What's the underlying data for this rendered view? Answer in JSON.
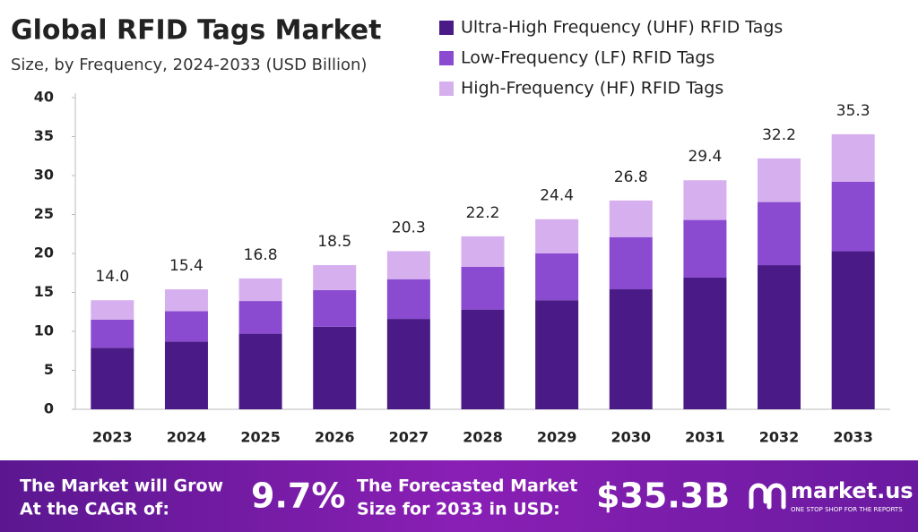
{
  "chart_data": {
    "type": "stacked-bar",
    "title": "Global RFID Tags Market",
    "subtitle": "Size, by Frequency, 2024-2033 (USD Billion)",
    "categories": [
      "2023",
      "2024",
      "2025",
      "2026",
      "2027",
      "2028",
      "2029",
      "2030",
      "2031",
      "2032",
      "2033"
    ],
    "series": [
      {
        "name": "Ultra-High Frequency (UHF) RFID Tags",
        "color": "#4a1b86",
        "values": [
          7.9,
          8.7,
          9.7,
          10.6,
          11.6,
          12.8,
          14.0,
          15.4,
          16.9,
          18.5,
          20.3
        ]
      },
      {
        "name": "Low-Frequency (LF) RFID Tags",
        "color": "#8a4bd0",
        "values": [
          3.6,
          3.9,
          4.2,
          4.7,
          5.1,
          5.5,
          6.0,
          6.7,
          7.4,
          8.1,
          8.9
        ]
      },
      {
        "name": "High-Frequency (HF) RFID Tags",
        "color": "#d6b0ee",
        "values": [
          2.5,
          2.8,
          2.9,
          3.2,
          3.6,
          3.9,
          4.4,
          4.7,
          5.1,
          5.6,
          6.1
        ]
      }
    ],
    "totals": [
      14.0,
      15.4,
      16.8,
      18.5,
      20.3,
      22.2,
      24.4,
      26.8,
      29.4,
      32.2,
      35.3
    ],
    "total_labels": [
      "14.0",
      "15.4",
      "16.8",
      "18.5",
      "20.3",
      "22.2",
      "24.4",
      "26.8",
      "29.4",
      "32.2",
      "35.3"
    ],
    "ylim": [
      0,
      40
    ],
    "yticks": [
      0,
      5,
      10,
      15,
      20,
      25,
      30,
      35,
      40
    ],
    "grid": false,
    "legend": "top-right"
  },
  "footer": {
    "cagr_label": [
      "The Market will Grow",
      "At the CAGR of:"
    ],
    "cagr_value": "9.7%",
    "forecast_label": [
      "The Forecasted Market",
      "Size for 2033 in USD:"
    ],
    "forecast_value": "$35.3B",
    "brand": "market.us",
    "brand_tagline": "ONE STOP SHOP FOR THE REPORTS"
  }
}
